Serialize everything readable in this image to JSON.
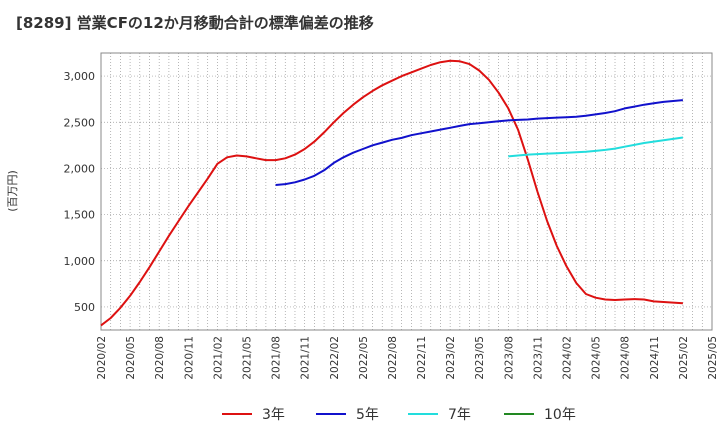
{
  "chart_data": {
    "type": "line",
    "title": "[8289]  営業CFの12か月移動合計の標準偏差の推移",
    "ylabel": "(百万円)",
    "xlabel": "",
    "ylim": [
      250,
      3250
    ],
    "yticks": [
      500,
      1000,
      1500,
      2000,
      2500,
      3000
    ],
    "ytick_labels": [
      "500",
      "1,000",
      "1,500",
      "2,000",
      "2,500",
      "3,000"
    ],
    "xticks": [
      "2020/02",
      "2020/05",
      "2020/08",
      "2020/11",
      "2021/02",
      "2021/05",
      "2021/08",
      "2021/11",
      "2022/02",
      "2022/05",
      "2022/08",
      "2022/11",
      "2023/02",
      "2023/05",
      "2023/08",
      "2023/11",
      "2024/02",
      "2024/05",
      "2024/08",
      "2024/11",
      "2025/02",
      "2025/05"
    ],
    "grid": true,
    "legend_position": "bottom",
    "series": [
      {
        "name": "3年",
        "color": "#dd1111",
        "x": [
          "2020/02",
          "2020/03",
          "2020/04",
          "2020/05",
          "2020/06",
          "2020/07",
          "2020/08",
          "2020/09",
          "2020/10",
          "2020/11",
          "2020/12",
          "2021/01",
          "2021/02",
          "2021/03",
          "2021/04",
          "2021/05",
          "2021/06",
          "2021/07",
          "2021/08",
          "2021/09",
          "2021/10",
          "2021/11",
          "2021/12",
          "2022/01",
          "2022/02",
          "2022/03",
          "2022/04",
          "2022/05",
          "2022/06",
          "2022/07",
          "2022/08",
          "2022/09",
          "2022/10",
          "2022/11",
          "2022/12",
          "2023/01",
          "2023/02",
          "2023/03",
          "2023/04",
          "2023/05",
          "2023/06",
          "2023/07",
          "2023/08",
          "2023/09",
          "2023/10",
          "2023/11",
          "2023/12",
          "2024/01",
          "2024/02",
          "2024/03",
          "2024/04",
          "2024/05",
          "2024/06",
          "2024/07",
          "2024/08",
          "2024/09",
          "2024/10",
          "2024/11",
          "2024/12",
          "2025/01",
          "2025/02"
        ],
        "values": [
          300,
          380,
          490,
          620,
          770,
          930,
          1100,
          1270,
          1430,
          1590,
          1740,
          1890,
          2050,
          2120,
          2140,
          2130,
          2110,
          2090,
          2090,
          2110,
          2150,
          2210,
          2290,
          2390,
          2500,
          2600,
          2690,
          2770,
          2840,
          2900,
          2950,
          3000,
          3040,
          3080,
          3120,
          3150,
          3165,
          3160,
          3130,
          3060,
          2960,
          2820,
          2650,
          2420,
          2100,
          1750,
          1430,
          1160,
          940,
          760,
          640,
          600,
          580,
          575,
          580,
          585,
          580,
          560,
          540,
          null,
          null
        ],
        "x_last": "2025/02"
      },
      {
        "name": "5年",
        "color": "#1111cc",
        "x": [
          "2021/08",
          "2021/09",
          "2021/10",
          "2021/11",
          "2021/12",
          "2022/01",
          "2022/02",
          "2022/03",
          "2022/04",
          "2022/05",
          "2022/06",
          "2022/07",
          "2022/08",
          "2022/09",
          "2022/10",
          "2022/11",
          "2022/12",
          "2023/01",
          "2023/02",
          "2023/03",
          "2023/04",
          "2023/05",
          "2023/06",
          "2023/07",
          "2023/08",
          "2023/09",
          "2023/10",
          "2023/11",
          "2023/12",
          "2024/01",
          "2024/02",
          "2024/03",
          "2024/04",
          "2024/05",
          "2024/06",
          "2024/07",
          "2024/08",
          "2024/09",
          "2024/10",
          "2024/11",
          "2024/12",
          "2025/01",
          "2025/02"
        ],
        "values": [
          1820,
          1830,
          1850,
          1880,
          1920,
          1980,
          2060,
          2120,
          2170,
          2210,
          2250,
          2280,
          2310,
          2330,
          2360,
          2380,
          2400,
          2420,
          2440,
          2460,
          2480,
          2490,
          2500,
          2510,
          2520,
          2525,
          2530,
          2540,
          2545,
          2550,
          2555,
          2560,
          2570,
          2585,
          2600,
          2620,
          2650,
          2670,
          2690,
          2705,
          2720,
          2730,
          2740
        ],
        "x_last": "2025/02"
      },
      {
        "name": "7年",
        "color": "#22dddd",
        "x": [
          "2023/08",
          "2023/09",
          "2023/10",
          "2023/11",
          "2023/12",
          "2024/01",
          "2024/02",
          "2024/03",
          "2024/04",
          "2024/05",
          "2024/06",
          "2024/07",
          "2024/08",
          "2024/09",
          "2024/10",
          "2024/11",
          "2024/12",
          "2025/01",
          "2025/02"
        ],
        "values": [
          2130,
          2140,
          2150,
          2155,
          2160,
          2165,
          2170,
          2175,
          2180,
          2190,
          2200,
          2215,
          2235,
          2255,
          2275,
          2290,
          2305,
          2320,
          2335
        ],
        "x_last": "2025/02"
      },
      {
        "name": "10年",
        "color": "#228822",
        "x": [],
        "values": []
      }
    ]
  }
}
